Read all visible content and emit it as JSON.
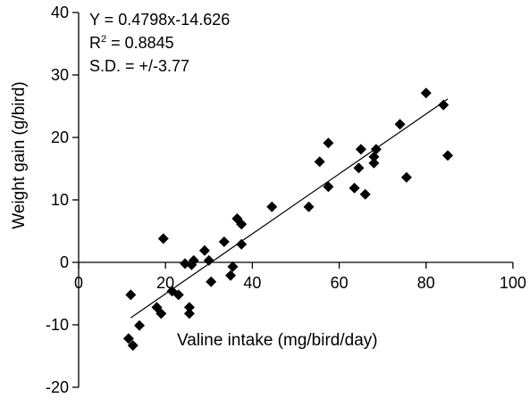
{
  "chart_data": {
    "type": "scatter",
    "xlabel": "Valine intake (mg/bird/day)",
    "ylabel": "Weight gain (g/bird)",
    "xlim": [
      0,
      100
    ],
    "ylim": [
      -20,
      40
    ],
    "x_ticks": [
      0,
      20,
      40,
      60,
      80,
      100
    ],
    "y_ticks": [
      -20,
      -10,
      0,
      10,
      20,
      30,
      40
    ],
    "x_tick_labels": [
      "0",
      "20",
      "40",
      "60",
      "80",
      "100"
    ],
    "y_tick_labels": [
      "-20",
      "-10",
      "0",
      "10",
      "20",
      "30",
      "40"
    ],
    "grid": false,
    "annotations": [
      {
        "prefix": "Y = 0.4798x-14.626",
        "sup": "",
        "suffix": ""
      },
      {
        "prefix": "R",
        "sup": "2",
        "suffix": " = 0.8845"
      },
      {
        "prefix": "S.D. = +/-3.77",
        "sup": "",
        "suffix": ""
      }
    ],
    "fit_line": {
      "slope": 0.4798,
      "intercept": -14.626,
      "x_range": [
        12,
        85
      ]
    },
    "marker": "diamond",
    "color": "#000000",
    "points": [
      {
        "x": 11.5,
        "y": -12.2
      },
      {
        "x": 12,
        "y": -5.2
      },
      {
        "x": 12.5,
        "y": -13.3
      },
      {
        "x": 14,
        "y": -10.1
      },
      {
        "x": 18,
        "y": -7.2
      },
      {
        "x": 19,
        "y": -8.2
      },
      {
        "x": 19.5,
        "y": 3.8
      },
      {
        "x": 21.5,
        "y": -4.6
      },
      {
        "x": 23,
        "y": -5.2
      },
      {
        "x": 24.5,
        "y": -0.2
      },
      {
        "x": 25.5,
        "y": -7.2
      },
      {
        "x": 25.5,
        "y": -8.2
      },
      {
        "x": 26,
        "y": -0.4
      },
      {
        "x": 26.5,
        "y": 0.3
      },
      {
        "x": 29,
        "y": 1.9
      },
      {
        "x": 30,
        "y": 0.3
      },
      {
        "x": 30.5,
        "y": -3.1
      },
      {
        "x": 33.5,
        "y": 3.3
      },
      {
        "x": 35,
        "y": -2.1
      },
      {
        "x": 35.5,
        "y": -0.7
      },
      {
        "x": 36.5,
        "y": 7.0
      },
      {
        "x": 37.5,
        "y": 6.1
      },
      {
        "x": 37.5,
        "y": 2.9
      },
      {
        "x": 44.5,
        "y": 8.9
      },
      {
        "x": 53,
        "y": 8.9
      },
      {
        "x": 55.5,
        "y": 16.1
      },
      {
        "x": 57.5,
        "y": 19.1
      },
      {
        "x": 57.5,
        "y": 12.1
      },
      {
        "x": 63.5,
        "y": 11.9
      },
      {
        "x": 64.5,
        "y": 15.1
      },
      {
        "x": 65,
        "y": 18.1
      },
      {
        "x": 66,
        "y": 10.9
      },
      {
        "x": 68,
        "y": 15.9
      },
      {
        "x": 68,
        "y": 16.9
      },
      {
        "x": 68.5,
        "y": 18.1
      },
      {
        "x": 74,
        "y": 22.1
      },
      {
        "x": 75.5,
        "y": 13.6
      },
      {
        "x": 80,
        "y": 27.1
      },
      {
        "x": 84,
        "y": 25.2
      },
      {
        "x": 85,
        "y": 17.1
      }
    ]
  }
}
